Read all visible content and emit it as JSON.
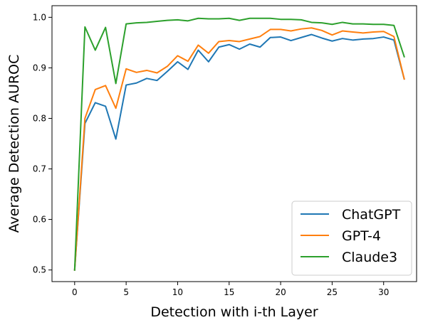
{
  "chart_data": {
    "type": "line",
    "xlabel": "Detection with i-th Layer",
    "ylabel": "Average Detection AUROC",
    "xlim": [
      -2.2,
      33.2
    ],
    "ylim": [
      0.477,
      1.023
    ],
    "xticks": [
      0,
      5,
      10,
      15,
      20,
      25,
      30
    ],
    "yticks": [
      0.5,
      0.6,
      0.7,
      0.8,
      0.9,
      1.0
    ],
    "ytick_labels": [
      "0.5",
      "0.6",
      "0.7",
      "0.8",
      "0.9",
      "1.0"
    ],
    "grid": false,
    "legend_position": "lower-right",
    "x": [
      0,
      1,
      2,
      3,
      4,
      5,
      6,
      7,
      8,
      9,
      10,
      11,
      12,
      13,
      14,
      15,
      16,
      17,
      18,
      19,
      20,
      21,
      22,
      23,
      24,
      25,
      26,
      27,
      28,
      29,
      30,
      31,
      32
    ],
    "series": [
      {
        "name": "ChatGPT",
        "color": "#1f77b4",
        "values": [
          0.5,
          0.79,
          0.831,
          0.824,
          0.759,
          0.866,
          0.87,
          0.879,
          0.875,
          0.893,
          0.912,
          0.897,
          0.935,
          0.912,
          0.941,
          0.946,
          0.937,
          0.947,
          0.941,
          0.96,
          0.961,
          0.954,
          0.96,
          0.966,
          0.959,
          0.953,
          0.958,
          0.955,
          0.957,
          0.958,
          0.961,
          0.955,
          0.878
        ]
      },
      {
        "name": "GPT-4",
        "color": "#ff7f0e",
        "values": [
          0.5,
          0.8,
          0.857,
          0.865,
          0.82,
          0.898,
          0.891,
          0.895,
          0.89,
          0.903,
          0.924,
          0.913,
          0.945,
          0.929,
          0.952,
          0.954,
          0.952,
          0.957,
          0.962,
          0.976,
          0.976,
          0.973,
          0.977,
          0.979,
          0.974,
          0.965,
          0.973,
          0.971,
          0.969,
          0.971,
          0.972,
          0.962,
          0.878
        ]
      },
      {
        "name": "Claude3",
        "color": "#2ca02c",
        "values": [
          0.5,
          0.981,
          0.935,
          0.98,
          0.869,
          0.987,
          0.989,
          0.99,
          0.992,
          0.994,
          0.995,
          0.993,
          0.998,
          0.997,
          0.997,
          0.998,
          0.994,
          0.998,
          0.998,
          0.998,
          0.996,
          0.996,
          0.995,
          0.99,
          0.989,
          0.986,
          0.99,
          0.987,
          0.987,
          0.986,
          0.986,
          0.984,
          0.922
        ]
      }
    ]
  }
}
